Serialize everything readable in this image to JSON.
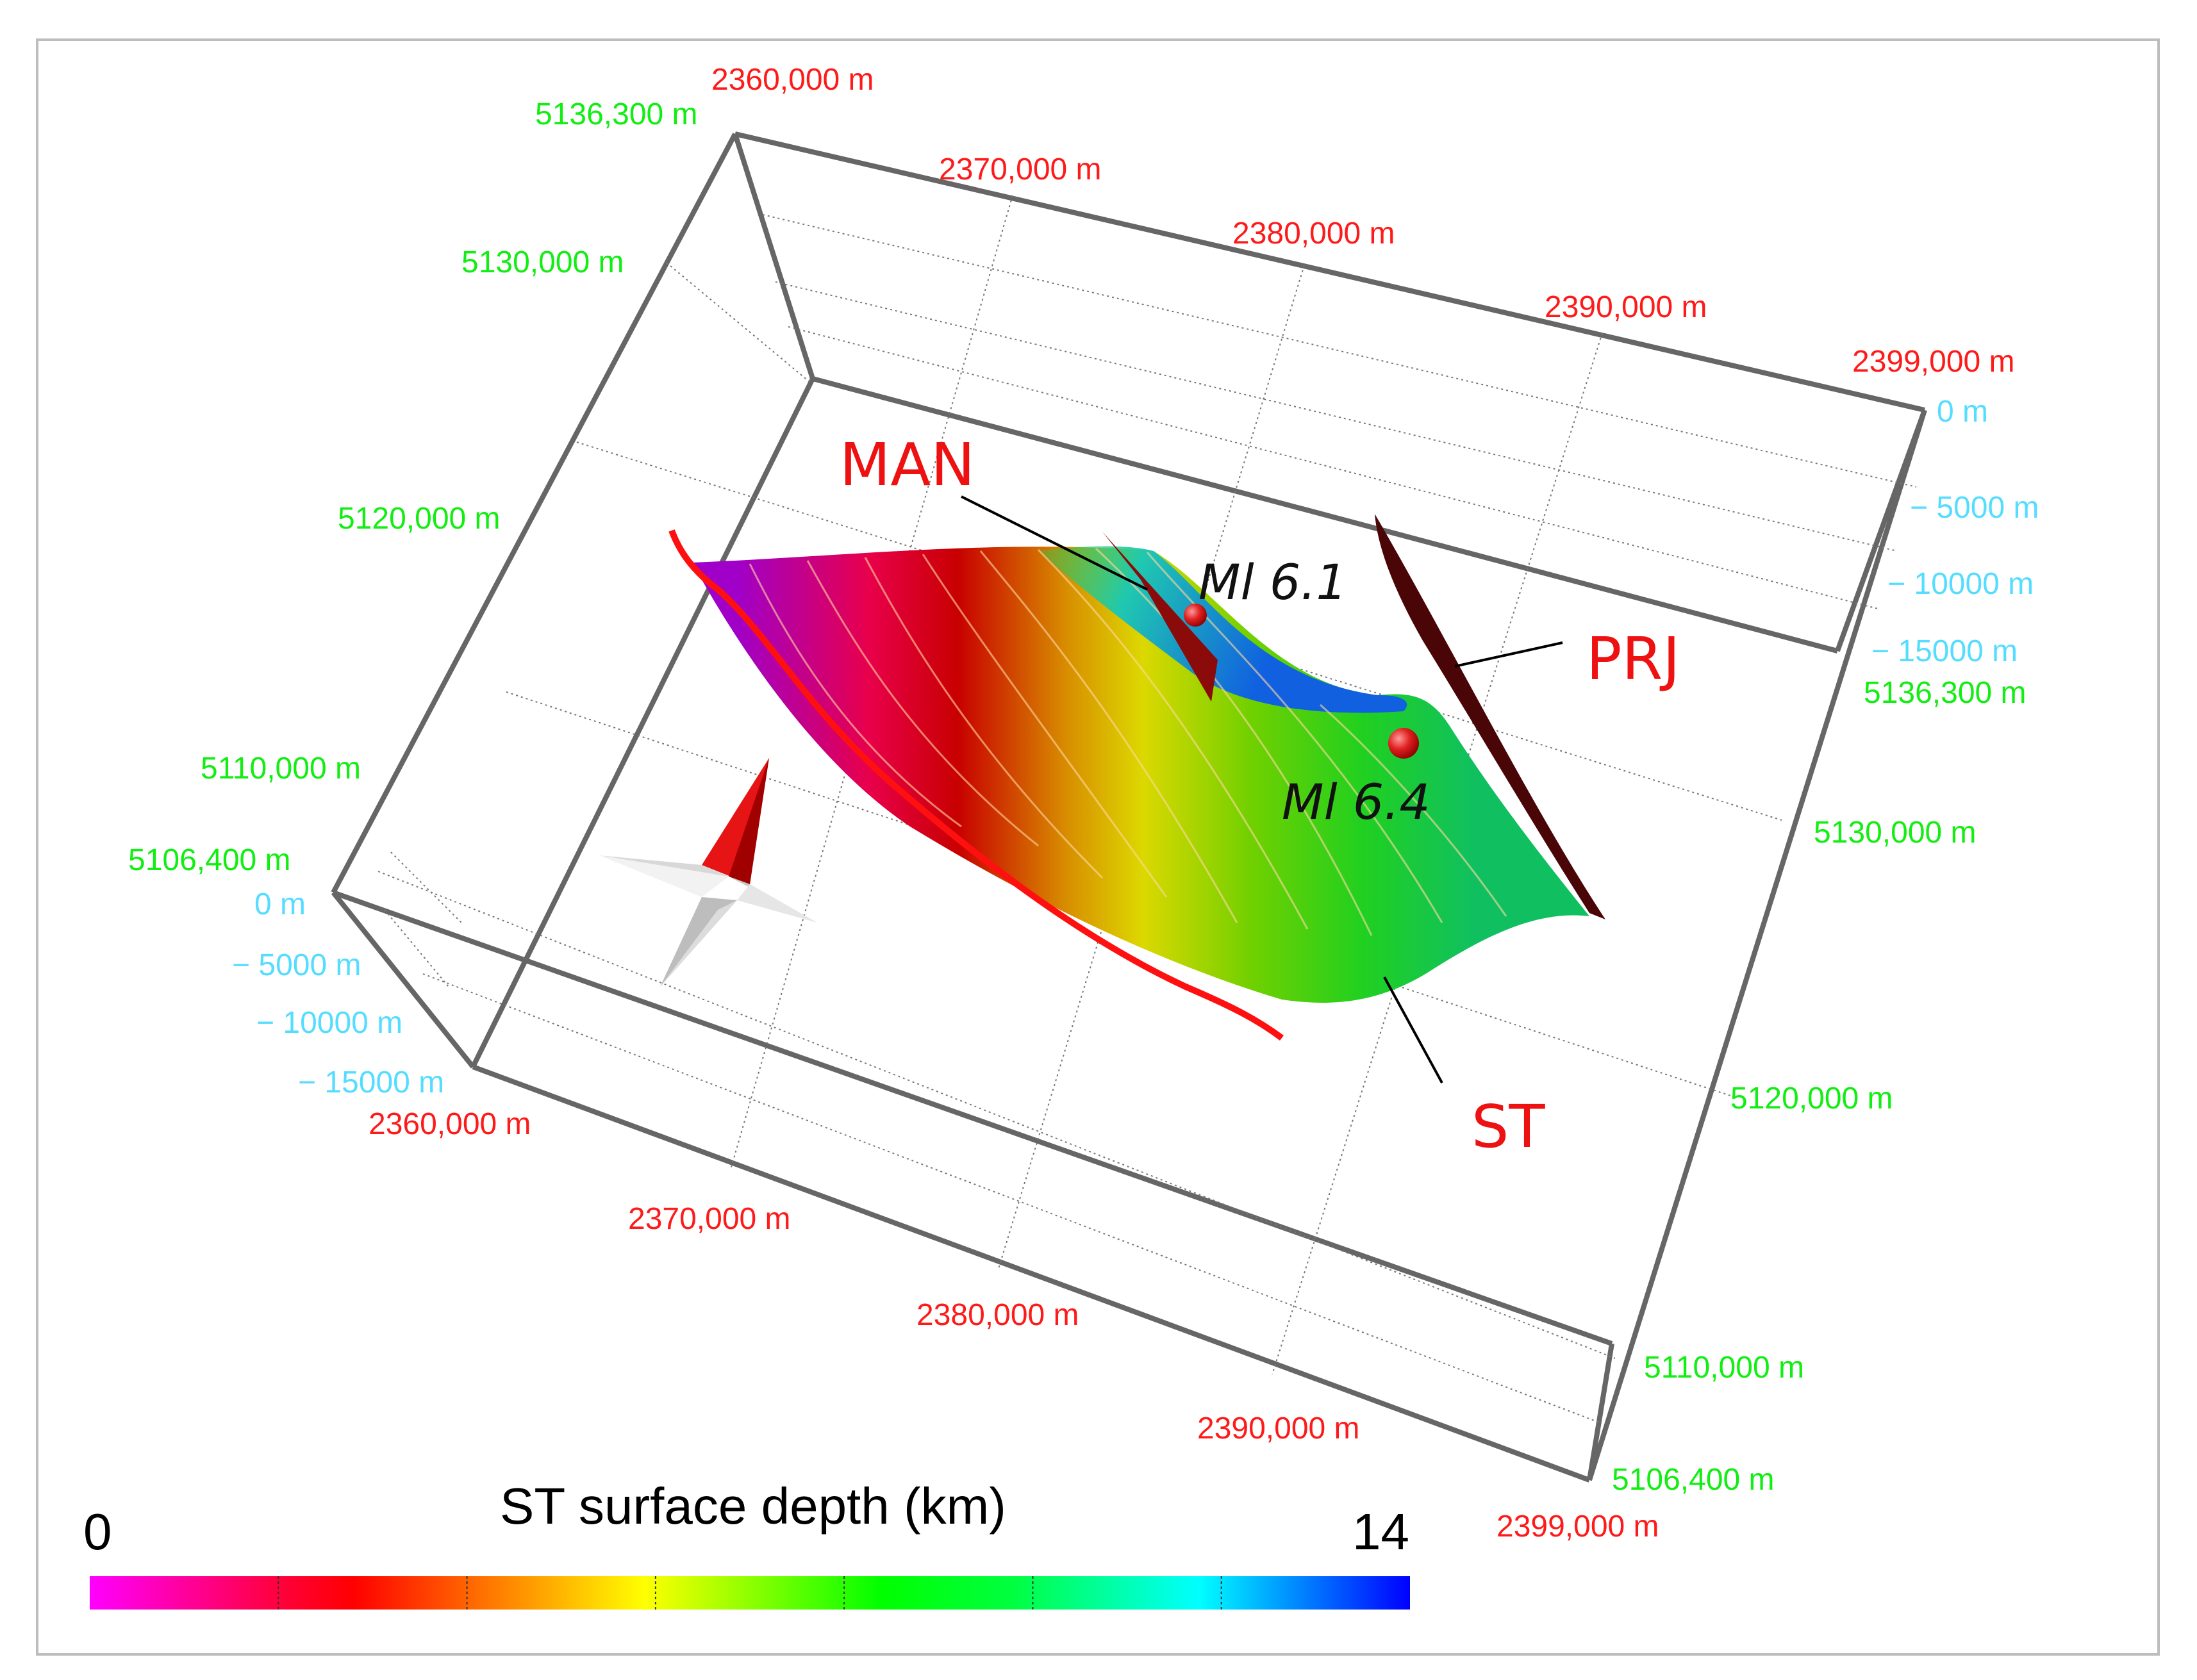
{
  "axes": {
    "x_labels_top": [
      "2360,000 m",
      "2370,000 m",
      "2380,000 m",
      "2390,000 m",
      "2399,000 m"
    ],
    "x_labels_bottom": [
      "2360,000 m",
      "2370,000 m",
      "2380,000 m",
      "2390,000 m",
      "2399,000 m"
    ],
    "y_labels_left": [
      "5136,300 m",
      "5130,000 m",
      "5120,000 m",
      "5110,000 m",
      "5106,400 m"
    ],
    "y_labels_right": [
      "5136,300 m",
      "5130,000 m",
      "5120,000 m",
      "5110,000 m",
      "5106,400 m"
    ],
    "z_labels_left": [
      "0 m",
      "− 5000 m",
      "− 10000 m",
      "− 15000 m"
    ],
    "z_labels_right": [
      "0 m",
      "− 5000 m",
      "− 10000 m",
      "− 15000 m"
    ]
  },
  "faults": {
    "man": "MAN",
    "prj": "PRJ",
    "st": "ST"
  },
  "earthquakes": [
    {
      "label": "Ml 6.1"
    },
    {
      "label": "Ml 6.4"
    }
  ],
  "colorbar": {
    "title": "ST surface depth (km)",
    "min_label": "0",
    "max_label": "14",
    "min": 0,
    "max": 14,
    "ticks": 7,
    "colors": [
      "#ff00ff",
      "#ff0000",
      "#ffff00",
      "#00ff00",
      "#00ffff",
      "#0000ff"
    ]
  },
  "colors": {
    "x_axis_labels": "#ff1a1a",
    "y_axis_labels": "#11ee11",
    "z_axis_labels": "#55ddff",
    "fault_labels": "#ee1111",
    "box_edges": "#666666"
  }
}
